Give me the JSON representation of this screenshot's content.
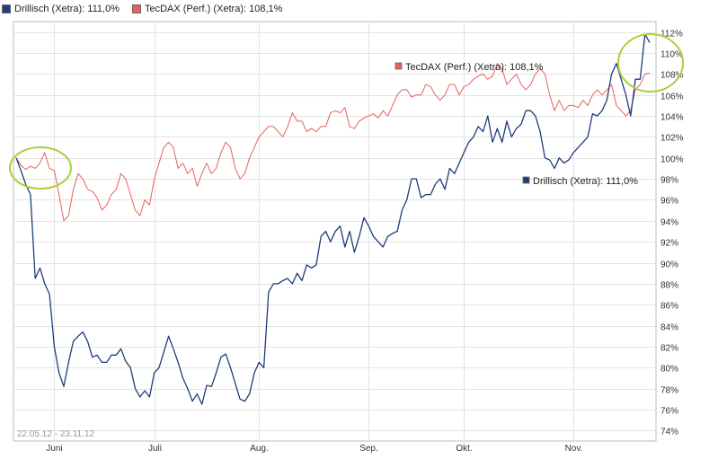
{
  "legend": [
    {
      "label": "Drillisch (Xetra): 111,0%",
      "color": "#1f3d7a"
    },
    {
      "label": "TecDAX (Perf.) (Xetra): 108,1%",
      "color": "#e8605c"
    }
  ],
  "date_range": "22.05.12 - 23.11.12",
  "chart_data": {
    "type": "line",
    "xticks": [
      "Juni",
      "Juli",
      "Aug.",
      "Sep.",
      "Okt.",
      "Nov."
    ],
    "yticks": [
      "74%",
      "76%",
      "78%",
      "80%",
      "82%",
      "84%",
      "86%",
      "88%",
      "90%",
      "92%",
      "94%",
      "96%",
      "98%",
      "100%",
      "102%",
      "104%",
      "106%",
      "108%",
      "110%",
      "112%"
    ],
    "ylim": [
      73,
      113
    ],
    "x": [
      "22.05.12",
      "23.05.12",
      "24.05.12",
      "25.05.12",
      "28.05.12",
      "29.05.12",
      "30.05.12",
      "31.05.12",
      "01.06.12",
      "04.06.12",
      "05.06.12",
      "06.06.12",
      "07.06.12",
      "08.06.12",
      "11.06.12",
      "12.06.12",
      "13.06.12",
      "14.06.12",
      "15.06.12",
      "18.06.12",
      "19.06.12",
      "20.06.12",
      "21.06.12",
      "22.06.12",
      "25.06.12",
      "26.06.12",
      "27.06.12",
      "28.06.12",
      "29.06.12",
      "02.07.12",
      "03.07.12",
      "04.07.12",
      "05.07.12",
      "06.07.12",
      "09.07.12",
      "10.07.12",
      "11.07.12",
      "12.07.12",
      "13.07.12",
      "16.07.12",
      "17.07.12",
      "18.07.12",
      "19.07.12",
      "20.07.12",
      "23.07.12",
      "24.07.12",
      "25.07.12",
      "26.07.12",
      "27.07.12",
      "30.07.12",
      "31.07.12",
      "01.08.12",
      "02.08.12",
      "03.08.12",
      "06.08.12",
      "07.08.12",
      "08.08.12",
      "09.08.12",
      "10.08.12",
      "13.08.12",
      "14.08.12",
      "15.08.12",
      "16.08.12",
      "17.08.12",
      "20.08.12",
      "21.08.12",
      "22.08.12",
      "23.08.12",
      "24.08.12",
      "27.08.12",
      "28.08.12",
      "29.08.12",
      "30.08.12",
      "31.08.12",
      "03.09.12",
      "04.09.12",
      "05.09.12",
      "06.09.12",
      "07.09.12",
      "10.09.12",
      "11.09.12",
      "12.09.12",
      "13.09.12",
      "14.09.12",
      "17.09.12",
      "18.09.12",
      "19.09.12",
      "20.09.12",
      "21.09.12",
      "24.09.12",
      "25.09.12",
      "26.09.12",
      "27.09.12",
      "28.09.12",
      "01.10.12",
      "02.10.12",
      "03.10.12",
      "04.10.12",
      "05.10.12",
      "08.10.12",
      "09.10.12",
      "10.10.12",
      "11.10.12",
      "12.10.12",
      "15.10.12",
      "16.10.12",
      "17.10.12",
      "18.10.12",
      "19.10.12",
      "22.10.12",
      "23.10.12",
      "24.10.12",
      "25.10.12",
      "26.10.12",
      "29.10.12",
      "30.10.12",
      "31.10.12",
      "01.11.12",
      "02.11.12",
      "05.11.12",
      "06.11.12",
      "07.11.12",
      "08.11.12",
      "09.11.12",
      "12.11.12",
      "13.11.12",
      "14.11.12",
      "15.11.12",
      "16.11.12",
      "19.11.12",
      "20.11.12",
      "21.11.12",
      "22.11.12",
      "23.11.12"
    ],
    "series": [
      {
        "name": "Drillisch (Xetra): 111,0%",
        "color": "#1f3d7a",
        "end_label": "Drillisch (Xetra): 111,0%",
        "values": [
          100.0,
          98.8,
          97.5,
          96.5,
          88.5,
          89.5,
          88.0,
          87.0,
          82.0,
          79.5,
          78.2,
          80.5,
          82.5,
          83.0,
          83.4,
          82.5,
          81.0,
          81.2,
          80.5,
          80.5,
          81.2,
          81.2,
          81.8,
          80.6,
          80.0,
          78.0,
          77.2,
          77.8,
          77.2,
          79.5,
          80.0,
          81.5,
          83.0,
          81.8,
          80.5,
          79.0,
          78.0,
          76.8,
          77.5,
          76.5,
          78.3,
          78.2,
          79.5,
          81.0,
          81.3,
          80.0,
          78.5,
          77.0,
          76.8,
          77.5,
          79.5,
          80.5,
          80.0,
          87.2,
          88.0,
          88.0,
          88.3,
          88.5,
          88.0,
          89.0,
          88.3,
          89.8,
          89.5,
          89.8,
          92.5,
          93.0,
          92.0,
          93.0,
          93.5,
          91.5,
          93.0,
          91.0,
          92.5,
          94.3,
          93.5,
          92.5,
          92.0,
          91.5,
          92.5,
          92.8,
          93.0,
          95.0,
          96.0,
          98.0,
          98.0,
          96.2,
          96.5,
          96.5,
          97.5,
          98.0,
          97.0,
          99.0,
          98.5,
          99.5,
          100.5,
          101.5,
          102.0,
          103.0,
          102.5,
          104.0,
          101.5,
          102.8,
          101.5,
          103.5,
          102.0,
          102.8,
          103.2,
          104.5,
          104.5,
          104.0,
          102.5,
          100.0,
          99.8,
          99.0,
          100.0,
          99.5,
          99.8,
          100.5,
          101.0,
          101.5,
          102.0,
          104.2,
          104.0,
          104.5,
          105.5,
          108.0,
          109.0,
          107.5,
          106.0,
          104.0,
          107.5,
          107.5,
          111.8,
          111.0
        ]
      },
      {
        "name": "TecDAX (Perf.) (Xetra): 108,1%",
        "color": "#e8605c",
        "end_label": "TecDAX (Perf.) (Xetra): 108,1%",
        "values": [
          100.0,
          99.3,
          98.9,
          99.2,
          99.0,
          99.5,
          100.5,
          99.0,
          98.8,
          96.5,
          94.0,
          94.5,
          97.0,
          98.5,
          98.0,
          97.0,
          96.8,
          96.2,
          95.0,
          95.5,
          96.5,
          97.0,
          98.5,
          98.0,
          96.5,
          95.0,
          94.5,
          96.0,
          95.5,
          98.0,
          99.5,
          101.0,
          101.5,
          101.0,
          99.0,
          99.5,
          98.5,
          99.0,
          97.3,
          98.5,
          99.5,
          98.5,
          99.0,
          100.5,
          101.5,
          101.0,
          99.0,
          98.0,
          98.5,
          100.0,
          101.0,
          102.0,
          102.5,
          103.0,
          103.0,
          102.5,
          102.0,
          103.0,
          104.3,
          103.5,
          103.5,
          102.5,
          102.8,
          102.5,
          103.0,
          103.0,
          104.3,
          104.5,
          104.3,
          104.8,
          103.0,
          102.8,
          103.5,
          103.8,
          104.0,
          104.2,
          103.8,
          104.5,
          104.0,
          105.0,
          106.0,
          106.5,
          106.5,
          105.8,
          106.0,
          106.0,
          107.0,
          106.8,
          106.0,
          105.5,
          106.0,
          107.0,
          107.0,
          106.0,
          106.8,
          107.0,
          107.5,
          107.8,
          108.0,
          107.5,
          107.8,
          109.0,
          108.5,
          107.0,
          107.5,
          108.0,
          107.0,
          106.5,
          107.0,
          108.0,
          108.5,
          108.0,
          106.0,
          104.5,
          105.5,
          104.5,
          105.0,
          105.0,
          104.8,
          105.5,
          105.0,
          106.0,
          106.5,
          106.0,
          106.5,
          107.0,
          105.0,
          104.5,
          104.0,
          104.5,
          106.5,
          107.0,
          108.0,
          108.1
        ]
      }
    ],
    "grid": "horizontal",
    "highlights": [
      "start",
      "end"
    ]
  }
}
